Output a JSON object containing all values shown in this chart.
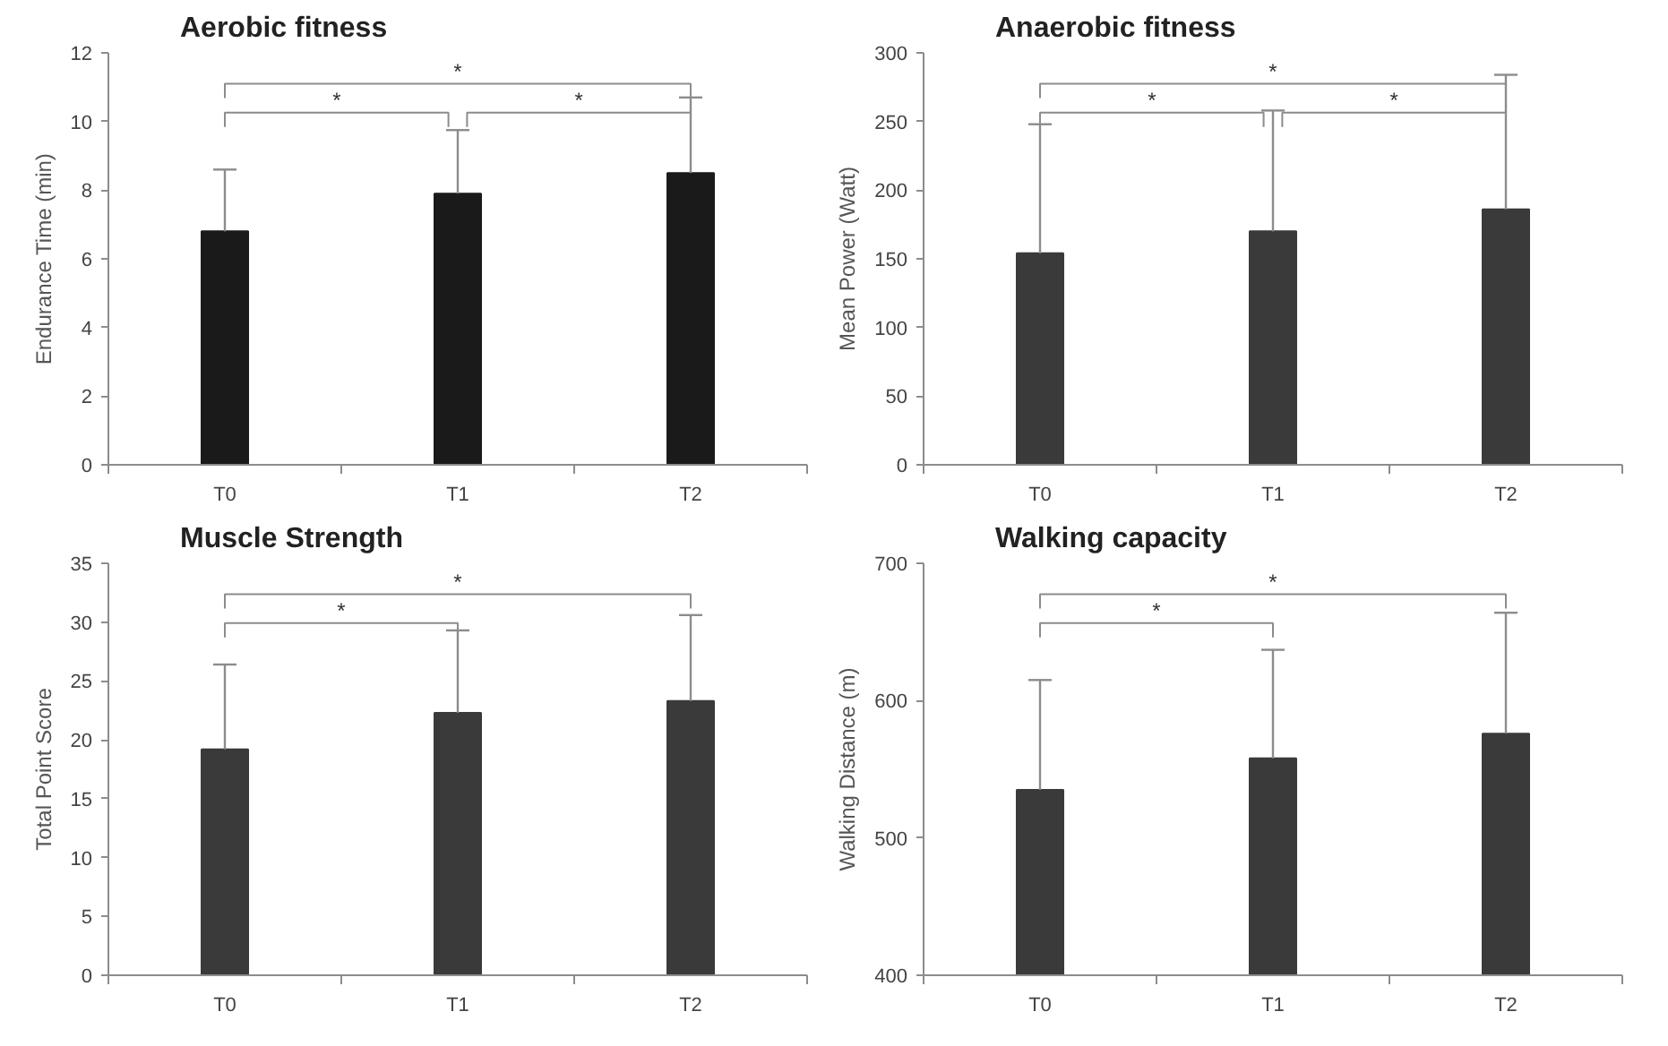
{
  "chart_data": [
    {
      "type": "bar",
      "title": "Aerobic fitness",
      "ylabel": "Endurance Time (min)",
      "categories": [
        "T0",
        "T1",
        "T2"
      ],
      "values": [
        6.8,
        7.9,
        8.5
      ],
      "color": "#1a1a1a",
      "errors": [
        [
          6.8,
          8.6
        ],
        [
          7.9,
          9.75
        ],
        [
          8.5,
          10.7
        ]
      ],
      "ylim": [
        0,
        12
      ],
      "yticks": [
        0,
        2,
        4,
        6,
        8,
        10,
        12
      ],
      "annotations": [
        "*",
        "*",
        "*"
      ]
    },
    {
      "type": "bar",
      "title": "Anaerobic fitness",
      "ylabel": "Mean Power (Watt)",
      "categories": [
        "T0",
        "T1",
        "T2"
      ],
      "values": [
        154,
        170,
        186
      ],
      "color": "#3a3a3a",
      "errors": [
        [
          154,
          248
        ],
        [
          170,
          258
        ],
        [
          186,
          284
        ]
      ],
      "ylim": [
        0,
        300
      ],
      "yticks": [
        0,
        50,
        100,
        150,
        200,
        250,
        300
      ],
      "annotations": [
        "*",
        "*",
        "*"
      ]
    },
    {
      "type": "bar",
      "title": "Muscle Strength",
      "ylabel": "Total Point Score",
      "categories": [
        "T0",
        "T1",
        "T2"
      ],
      "values": [
        19.2,
        22.3,
        23.3
      ],
      "color": "#3a3a3a",
      "errors": [
        [
          19.2,
          26.4
        ],
        [
          22.3,
          29.3
        ],
        [
          23.3,
          30.6
        ]
      ],
      "ylim": [
        0,
        35
      ],
      "yticks": [
        0,
        5,
        10,
        15,
        20,
        25,
        30,
        35
      ],
      "annotations": [
        "*",
        "*"
      ]
    },
    {
      "type": "bar",
      "title": "Walking capacity",
      "ylabel": "Walking Distance (m)",
      "categories": [
        "T0",
        "T1",
        "T2"
      ],
      "values": [
        535,
        558,
        576
      ],
      "color": "#3a3a3a",
      "errors": [
        [
          535,
          615
        ],
        [
          558,
          637
        ],
        [
          576,
          664
        ]
      ],
      "ylim": [
        400,
        700
      ],
      "yticks": [
        400,
        500,
        600,
        700
      ],
      "annotations": [
        "*",
        "*"
      ]
    }
  ]
}
